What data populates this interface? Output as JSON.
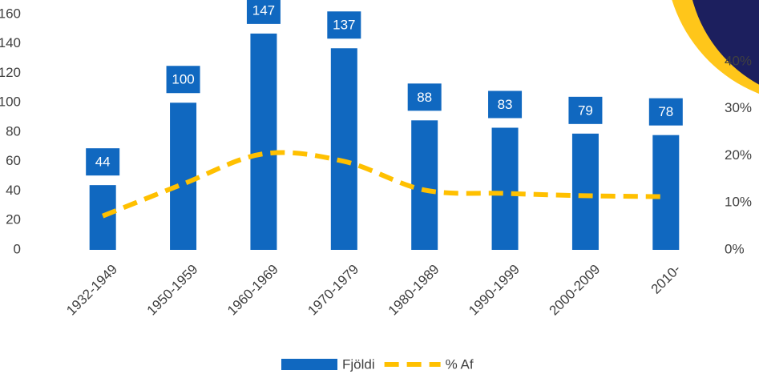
{
  "chart_data": {
    "type": "bar",
    "categories": [
      "1932-1949",
      "1950-1959",
      "1960-1969",
      "1970-1979",
      "1980-1989",
      "1990-1999",
      "2000-2009",
      "2010-"
    ],
    "series": [
      {
        "name": "Fjöldi",
        "type": "bar",
        "color": "#1068c0",
        "values": [
          44,
          100,
          147,
          137,
          88,
          83,
          79,
          78
        ]
      },
      {
        "name": "% Af",
        "type": "line",
        "axis": "y2",
        "color": "#ffc000",
        "values": [
          7.2,
          14,
          20.4,
          18.8,
          12.7,
          12,
          11.5,
          11.3
        ]
      }
    ],
    "ylim": [
      0,
      160
    ],
    "yticks": [
      0,
      20,
      40,
      60,
      80,
      100,
      120,
      140,
      160
    ],
    "y2lim": [
      0,
      50
    ],
    "y2ticks": [
      {
        "value": 0,
        "label": "0%"
      },
      {
        "value": 10,
        "label": "10%"
      },
      {
        "value": 20,
        "label": "20%"
      },
      {
        "value": 30,
        "label": "30%"
      },
      {
        "value": 40,
        "label": "40%"
      }
    ],
    "grid": false,
    "legend": "bottom"
  }
}
